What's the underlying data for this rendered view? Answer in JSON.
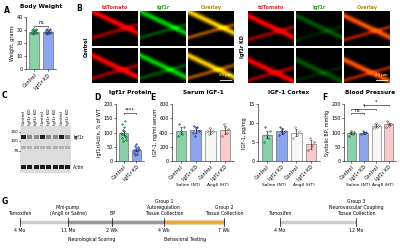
{
  "chart_data": [
    {
      "panel": "A",
      "type": "bar",
      "title": "Body Weight",
      "y_label": "Weight, grams",
      "categories": [
        "Control",
        "Igf1r KD"
      ],
      "values": [
        29,
        29
      ],
      "errors": [
        0.5,
        0.5
      ],
      "points": [
        [
          28,
          30,
          29,
          31,
          27,
          29,
          30,
          28,
          29,
          30,
          31,
          28
        ],
        [
          29,
          28,
          30,
          31,
          27,
          29,
          28,
          30,
          29,
          31,
          28,
          29
        ]
      ],
      "colors": [
        "#3cb371",
        "#4169e1"
      ],
      "ylim": [
        0,
        40
      ],
      "yticks": [
        0,
        10,
        20,
        30,
        40
      ],
      "annotations": [
        {
          "text": "ns",
          "between": [
            0,
            1
          ]
        }
      ]
    },
    {
      "panel": "D",
      "type": "bar",
      "title": "Igf1r Protein",
      "y_label": "Igf1r/Actin, % of WT",
      "categories": [
        "Control",
        "Igf1r KD"
      ],
      "values": [
        100,
        40
      ],
      "errors": [
        7,
        4
      ],
      "points": [
        [
          100,
          130,
          80,
          95,
          110,
          70,
          120,
          105,
          90,
          140,
          85,
          75
        ],
        [
          40,
          30,
          55,
          20,
          45,
          60,
          35,
          25,
          50,
          38,
          42
        ]
      ],
      "colors": [
        "#3cb371",
        "#4169e1"
      ],
      "ylim": [
        0,
        200
      ],
      "yticks": [
        0,
        50,
        100,
        150,
        200
      ],
      "annotations": [
        {
          "text": "****",
          "between": [
            0,
            1
          ]
        }
      ]
    },
    {
      "panel": "E",
      "type": "bar",
      "title": "Serum IGF-1",
      "y_label": "IGF-1, ng/ml serum",
      "categories": [
        "Control",
        "Igf1r KD",
        "Control",
        "Igf1r KD"
      ],
      "groups": [
        "Saline (NT)",
        "AngII (HT)"
      ],
      "values": [
        430,
        440,
        420,
        440
      ],
      "errors": [
        50,
        45,
        40,
        60
      ],
      "points": [
        [
          350,
          520,
          420,
          380,
          480
        ],
        [
          400,
          500,
          350,
          460,
          480,
          420
        ],
        [
          420,
          380,
          460,
          410,
          430
        ],
        [
          350,
          520,
          480,
          400,
          450
        ]
      ],
      "colors": [
        "#3cb371",
        "#4169e1",
        "#f2f2f2",
        "#f4a7a7"
      ],
      "ylim": [
        0,
        800
      ],
      "yticks": [
        0,
        200,
        400,
        600,
        800
      ]
    },
    {
      "type": "bar",
      "title": "IGF-1 Cortex",
      "y_label": "IGF-1, pg/mg",
      "categories": [
        "Control",
        "Igf1r KD",
        "Control",
        "Igf1r KD"
      ],
      "groups": [
        "Saline (NT)",
        "AngII (HT)"
      ],
      "values": [
        7,
        8,
        7.5,
        4.5
      ],
      "errors": [
        1,
        0.8,
        1,
        1.2
      ],
      "points": [
        [
          5,
          9,
          7,
          6,
          8
        ],
        [
          7,
          9,
          8,
          8.5,
          7.5,
          8
        ],
        [
          6,
          9,
          7,
          8
        ],
        [
          3,
          6,
          4,
          5
        ]
      ],
      "colors": [
        "#3cb371",
        "#4169e1",
        "#f2f2f2",
        "#f4a7a7"
      ],
      "ylim": [
        0,
        15
      ],
      "yticks": [
        0,
        5,
        10,
        15
      ]
    },
    {
      "panel": "F",
      "type": "bar",
      "title": "Blood Pressure",
      "y_label": "Systolic BP, mmHg",
      "categories": [
        "Control",
        "Igf1r KD",
        "Control",
        "Igf1r KD"
      ],
      "groups": [
        "Saline (NT)",
        "AngII (HT)"
      ],
      "values": [
        98,
        100,
        125,
        130
      ],
      "errors": [
        3,
        3,
        4,
        4
      ],
      "points": [
        [
          90,
          100,
          105,
          95,
          102
        ],
        [
          95,
          105,
          100,
          98,
          103
        ],
        [
          115,
          130,
          135,
          120,
          125,
          128
        ],
        [
          120,
          140,
          135,
          125,
          130,
          132
        ]
      ],
      "colors": [
        "#3cb371",
        "#4169e1",
        "#f2f2f2",
        "#f4a7a7"
      ],
      "ylim": [
        0,
        200
      ],
      "yticks": [
        0,
        50,
        100,
        150,
        200
      ],
      "annotations": [
        {
          "text": "ns",
          "between": [
            0,
            1
          ]
        },
        {
          "text": "*",
          "between": [
            0,
            2
          ]
        },
        {
          "text": "*",
          "between": [
            1,
            3
          ]
        }
      ]
    }
  ],
  "microscopy": {
    "panel": "B",
    "scale_bar": "20 μm",
    "sets": [
      {
        "row_label": "Control",
        "channels": [
          "tdTomato",
          "Igf1r",
          "Overlay"
        ]
      },
      {
        "row_label": "Igf1r KD",
        "channels": [
          "tdTomato",
          "Igf1r",
          "Overlay"
        ]
      }
    ]
  },
  "western_blot": {
    "panel": "C",
    "lanes": [
      "Control",
      "Igf1r KD",
      "Igf1r KD",
      "Control",
      "Igf1r KD",
      "Igf1r KD",
      "Control",
      "Igf1r KD"
    ],
    "markers": [
      "150",
      "100",
      "75"
    ],
    "bands": [
      "Igf1r",
      "Actin"
    ]
  },
  "timeline": {
    "panel": "G",
    "rows": [
      {
        "points": [
          {
            "time": "4 Mo",
            "label": "Tamoxifen"
          },
          {
            "time": "11 Mo",
            "label": "Mini-pump\n(AngII or Saline)"
          },
          {
            "time": "2 Wk",
            "label": "BP"
          },
          {
            "time": "4 Wk",
            "label": "Group 1\nAutoregulation\nTissue Collection"
          },
          {
            "time": "7 Wk",
            "label": "Group 2\nTissue Collection"
          }
        ],
        "bars": [
          {
            "label": "Neurological Scoring",
            "from": 1,
            "to": 4
          },
          {
            "label": "Behavioral Testing",
            "from": 3,
            "to": 4
          }
        ]
      },
      {
        "points": [
          {
            "time": "4 Mo",
            "label": "Tamoxifen"
          },
          {
            "time": "12 Mo",
            "label": "Group 3\nNeurovascular Coupling\nTissue Collection"
          }
        ],
        "bars": []
      }
    ]
  }
}
